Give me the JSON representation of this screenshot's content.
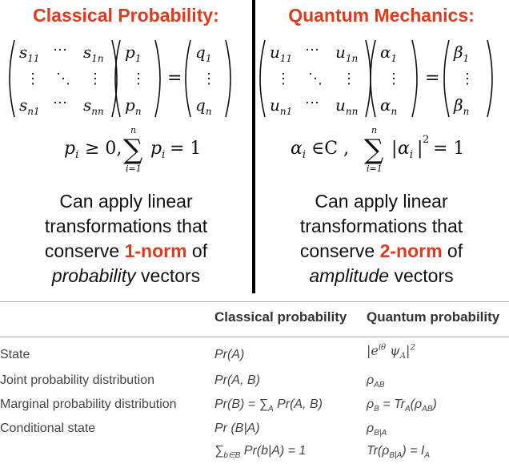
{
  "left": {
    "heading": "Classical Probability:",
    "matrix": {
      "cells": [
        "s",
        "11",
        "s",
        "1n",
        "s",
        "n1",
        "s",
        "nn"
      ],
      "vec_in": [
        "p",
        "1",
        "p",
        "n"
      ],
      "vec_out": [
        "q",
        "1",
        "q",
        "n"
      ]
    },
    "condition": "p_i ≥ 0,  Σ_{i=1}^{n} p_i = 1",
    "desc_line1": "Can apply linear",
    "desc_line2": "transformations that",
    "desc_pre": "conserve ",
    "desc_norm": "1-norm",
    "desc_post": " of",
    "desc_vec_word": "probability",
    "desc_vec_tail": " vectors"
  },
  "right": {
    "heading": "Quantum Mechanics:",
    "matrix": {
      "cells": [
        "u",
        "11",
        "u",
        "1n",
        "u",
        "n1",
        "u",
        "nn"
      ],
      "vec_in": [
        "α",
        "1",
        "α",
        "n"
      ],
      "vec_out": [
        "β",
        "1",
        "β",
        "n"
      ]
    },
    "condition": "α_i ∈ C,  Σ_{i=1}^{n} |α_i|² = 1",
    "desc_line1": "Can apply linear",
    "desc_line2": "transformations that",
    "desc_pre": "conserve ",
    "desc_norm": "2-norm",
    "desc_post": " of",
    "desc_vec_word": "amplitude",
    "desc_vec_tail": " vectors"
  },
  "table": {
    "col_classical": "Classical probability",
    "col_quantum": "Quantum probability",
    "rows": [
      {
        "label": "State",
        "classical": "Pr(A)",
        "quantum": "|e^{iθ} ψ_A|²"
      },
      {
        "label": "Joint probability distribution",
        "classical": "Pr(A, B)",
        "quantum": "ρ_AB"
      },
      {
        "label": "Marginal probability distribution",
        "classical": "Pr(B) = Σ_A Pr(A, B)",
        "quantum": "ρ_B = Tr_A(ρ_AB)"
      },
      {
        "label": "Conditional state",
        "classical": "Pr (B|A)",
        "quantum": "ρ_B|A"
      },
      {
        "label": "",
        "classical": "Σ_{b∈B} Pr(b|A) = 1",
        "quantum": "Tr(ρ_B|A) = I_A"
      }
    ]
  },
  "colors": {
    "accent": "#e03a1e",
    "divider": "#000000",
    "rule": "#aaaaaa"
  }
}
